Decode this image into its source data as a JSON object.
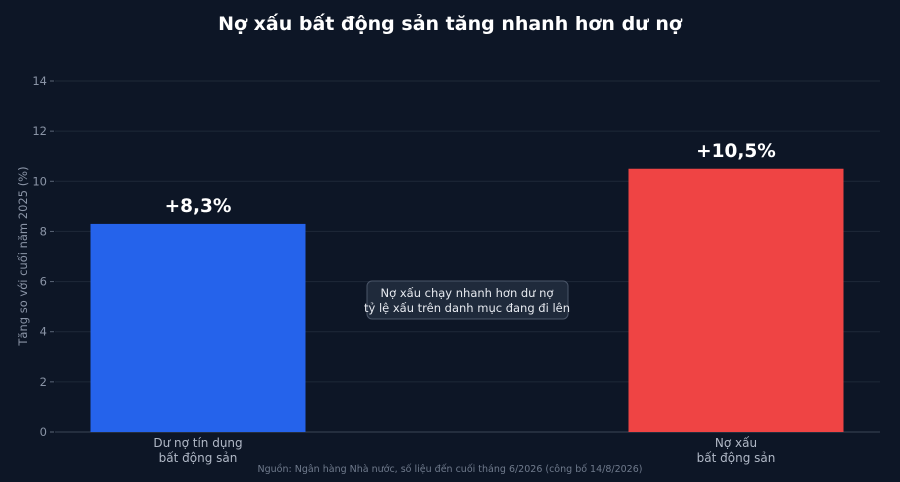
{
  "chart_data": {
    "type": "bar",
    "title": "Nợ xấu bất động sản tăng nhanh hơn dư nợ",
    "ylabel": "Tăng so với cuối năm 2025 (%)",
    "xlabel": "",
    "categories": [
      [
        "Dư nợ tín dụng",
        "bất động sản"
      ],
      [
        "Nợ xấu",
        "bất động sản"
      ]
    ],
    "values": [
      8.3,
      10.5
    ],
    "value_labels": [
      "+8,3%",
      "+10,5%"
    ],
    "colors": [
      "#2563eb",
      "#ef4444"
    ],
    "ylim": [
      0,
      14
    ],
    "yticks": [
      0,
      2,
      4,
      6,
      8,
      10,
      12,
      14
    ],
    "grid": true,
    "annotation": [
      "Nợ xấu chạy nhanh hơn dư nợ",
      "tỷ lệ xấu trên danh mục đang đi lên"
    ],
    "source": "Nguồn: Ngân hàng Nhà nước, số liệu đến cuối tháng 6/2026 (công bố 14/8/2026)"
  }
}
